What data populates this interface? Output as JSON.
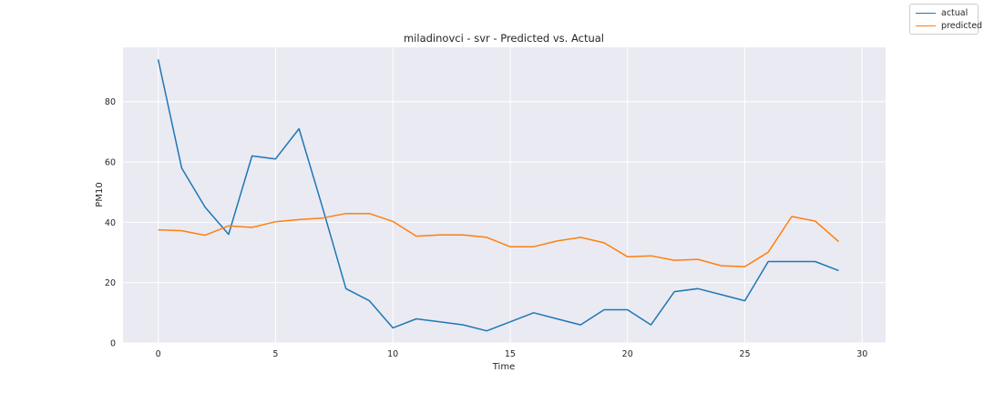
{
  "chart_data": {
    "type": "line",
    "title": "miladinovci - svr - Predicted vs. Actual",
    "xlabel": "Time",
    "ylabel": "PM10",
    "xlim": [
      -1.5,
      31.0
    ],
    "ylim": [
      0,
      98
    ],
    "xticks": [
      0,
      5,
      10,
      15,
      20,
      25,
      30
    ],
    "yticks": [
      0,
      20,
      40,
      60,
      80
    ],
    "grid": true,
    "legend_position": "top-right",
    "x": [
      0,
      1,
      2,
      3,
      4,
      5,
      6,
      7,
      8,
      9,
      10,
      11,
      12,
      13,
      14,
      15,
      16,
      17,
      18,
      19,
      20,
      21,
      22,
      23,
      24,
      25,
      26,
      27,
      28,
      29
    ],
    "series": [
      {
        "name": "actual",
        "color": "#1f77b4",
        "values": [
          94,
          58,
          45,
          36,
          62,
          61,
          71,
          45,
          18,
          14,
          5,
          8,
          7,
          6,
          4,
          7,
          10,
          8,
          6,
          11,
          11,
          6,
          17,
          18,
          16,
          14,
          27,
          27,
          27,
          24
        ]
      },
      {
        "name": "predicted",
        "color": "#ff7f0e",
        "values": [
          37.5,
          37.2,
          35.7,
          38.8,
          38.3,
          40.2,
          40.9,
          41.4,
          42.9,
          42.9,
          40.3,
          35.4,
          35.8,
          35.8,
          35.0,
          31.9,
          31.9,
          33.8,
          35.0,
          33.2,
          28.6,
          28.9,
          27.4,
          27.7,
          25.6,
          25.3,
          30.1,
          41.9,
          40.4,
          33.6
        ]
      }
    ]
  }
}
